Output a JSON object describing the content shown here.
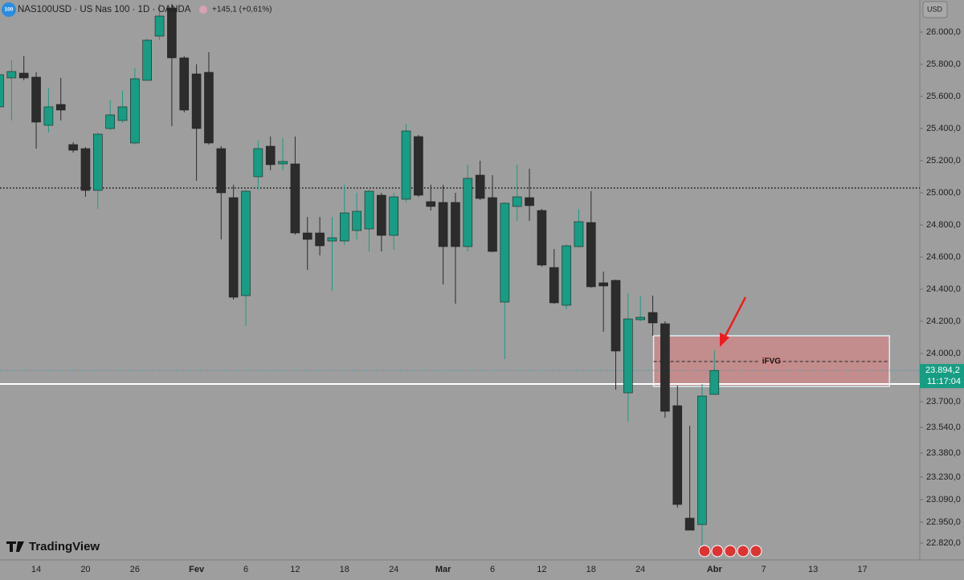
{
  "chart_data": {
    "type": "candlestick",
    "title": "NAS100USD · US Nas 100 · 1D · OANDA",
    "symbol_badge": "100",
    "change": "+145,1 (+0,61%)",
    "currency": "USD",
    "brand": "TradingView",
    "countdown": "11:17:04",
    "last_price": {
      "value": 23894.2,
      "label": "23.894,2"
    },
    "up_color": "#169d83",
    "down_color": "#2c2c2c",
    "categories": [
      null,
      null,
      null,
      "14",
      null,
      null,
      null,
      "20",
      null,
      null,
      null,
      "26",
      null,
      null,
      null,
      null,
      "Fev",
      null,
      null,
      null,
      "6",
      null,
      null,
      null,
      "12",
      null,
      null,
      null,
      "18",
      null,
      null,
      null,
      "24",
      null,
      null,
      null,
      "Mar",
      null,
      null,
      null,
      "6",
      null,
      null,
      null,
      "12",
      null,
      null,
      null,
      "18",
      null,
      null,
      null,
      "24",
      null,
      null,
      null,
      null,
      null,
      "Abr",
      null,
      null,
      null,
      "7",
      null,
      null,
      null,
      "13",
      null,
      null,
      null,
      "17",
      null,
      null,
      null
    ],
    "open": [
      25535,
      25715,
      25745,
      25720,
      25420,
      25550,
      25300,
      25275,
      25015,
      25400,
      25450,
      25310,
      25700,
      25975,
      26150,
      25840,
      25740,
      25750,
      25275,
      24970,
      24360,
      25100,
      25290,
      25180,
      25180,
      24750,
      24750,
      24700,
      24700,
      24765,
      24775,
      24985,
      24735,
      24960,
      25350,
      24945,
      24940,
      24940,
      24665,
      25110,
      24970,
      24320,
      24915,
      24970,
      24890,
      24535,
      24300,
      24665,
      24815,
      24440,
      24455,
      23755,
      24210,
      24255,
      24185,
      23675,
      22975,
      22935,
      23745,
      null,
      null,
      null,
      null,
      null,
      null,
      null,
      null,
      null,
      null,
      null,
      null,
      null,
      null,
      null
    ],
    "high": [
      25825,
      25825,
      25850,
      25750,
      25650,
      25715,
      25315,
      25285,
      25375,
      25575,
      25635,
      25775,
      25960,
      26175,
      26175,
      25850,
      25800,
      25875,
      25290,
      25050,
      25020,
      25325,
      25350,
      25340,
      25350,
      24850,
      24850,
      24850,
      25050,
      25000,
      25020,
      25000,
      25000,
      25425,
      25360,
      25050,
      25050,
      25000,
      25175,
      25200,
      25110,
      24940,
      25175,
      25150,
      24900,
      24650,
      24680,
      24900,
      25010,
      24510,
      24460,
      24375,
      24360,
      24360,
      24200,
      23800,
      23550,
      23810,
      24020,
      null,
      null,
      null,
      null,
      null,
      null,
      null,
      null,
      null,
      null,
      null,
      null,
      null,
      null,
      null
    ],
    "low": [
      25500,
      25450,
      25700,
      25275,
      25375,
      25450,
      25250,
      24975,
      24900,
      25390,
      25435,
      25300,
      25700,
      25950,
      25415,
      25500,
      25075,
      25300,
      24710,
      24335,
      24170,
      25020,
      25140,
      25140,
      24740,
      24520,
      24610,
      24390,
      24675,
      24710,
      24635,
      24635,
      24645,
      24940,
      24975,
      24890,
      24430,
      24310,
      24635,
      24955,
      24630,
      23965,
      24825,
      24825,
      24540,
      24310,
      24275,
      24660,
      24410,
      24135,
      23775,
      23575,
      24200,
      24110,
      23600,
      23040,
      22900,
      22785,
      23745,
      null,
      null,
      null,
      null,
      null,
      null,
      null,
      null,
      null,
      null,
      null,
      null,
      null,
      null,
      null
    ],
    "close": [
      25735,
      25755,
      25715,
      25440,
      25535,
      25515,
      25265,
      25015,
      25365,
      25485,
      25535,
      25710,
      25950,
      26100,
      25840,
      25515,
      25400,
      25310,
      25000,
      24350,
      25010,
      25275,
      25175,
      25195,
      24750,
      24710,
      24670,
      24720,
      24875,
      24885,
      25010,
      24735,
      24975,
      25385,
      24985,
      24915,
      24665,
      24665,
      25090,
      24965,
      24635,
      24935,
      24975,
      24920,
      24550,
      24315,
      24670,
      24820,
      24415,
      24420,
      24015,
      24215,
      24225,
      24190,
      23640,
      23060,
      22900,
      23735,
      23894.2,
      null,
      null,
      null,
      null,
      null,
      null,
      null,
      null,
      null,
      null,
      null,
      null,
      null,
      null,
      null
    ],
    "ylim": [
      22715,
      26200
    ],
    "yticks": [
      {
        "value": 26000,
        "label": "26.000,0"
      },
      {
        "value": 25800,
        "label": "25.800,0"
      },
      {
        "value": 25600,
        "label": "25.600,0"
      },
      {
        "value": 25400,
        "label": "25.400,0"
      },
      {
        "value": 25200,
        "label": "25.200,0"
      },
      {
        "value": 25000,
        "label": "25.000,0"
      },
      {
        "value": 24800,
        "label": "24.800,0"
      },
      {
        "value": 24600,
        "label": "24.600,0"
      },
      {
        "value": 24400,
        "label": "24.400,0"
      },
      {
        "value": 24200,
        "label": "24.200,0"
      },
      {
        "value": 24000,
        "label": "24.000,0"
      },
      {
        "value": 23700,
        "label": "23.700,0"
      },
      {
        "value": 23540,
        "label": "23.540,0"
      },
      {
        "value": 23380,
        "label": "23.380,0"
      },
      {
        "value": 23230,
        "label": "23.230,0"
      },
      {
        "value": 23090,
        "label": "23.090,0"
      },
      {
        "value": 22950,
        "label": "22.950,0"
      },
      {
        "value": 22820,
        "label": "22.820,0"
      }
    ],
    "hlines": [
      {
        "value": 25030,
        "style": "dotted",
        "color": "#111111"
      },
      {
        "value": 23810,
        "style": "solid",
        "color": "#ffffff"
      }
    ],
    "zone": {
      "label": "iFVG",
      "top": 24110,
      "bottom": 23795,
      "mid": 23950,
      "start": 53,
      "end": 72,
      "color": "#c98a8a",
      "border": "#d8eef5"
    }
  }
}
